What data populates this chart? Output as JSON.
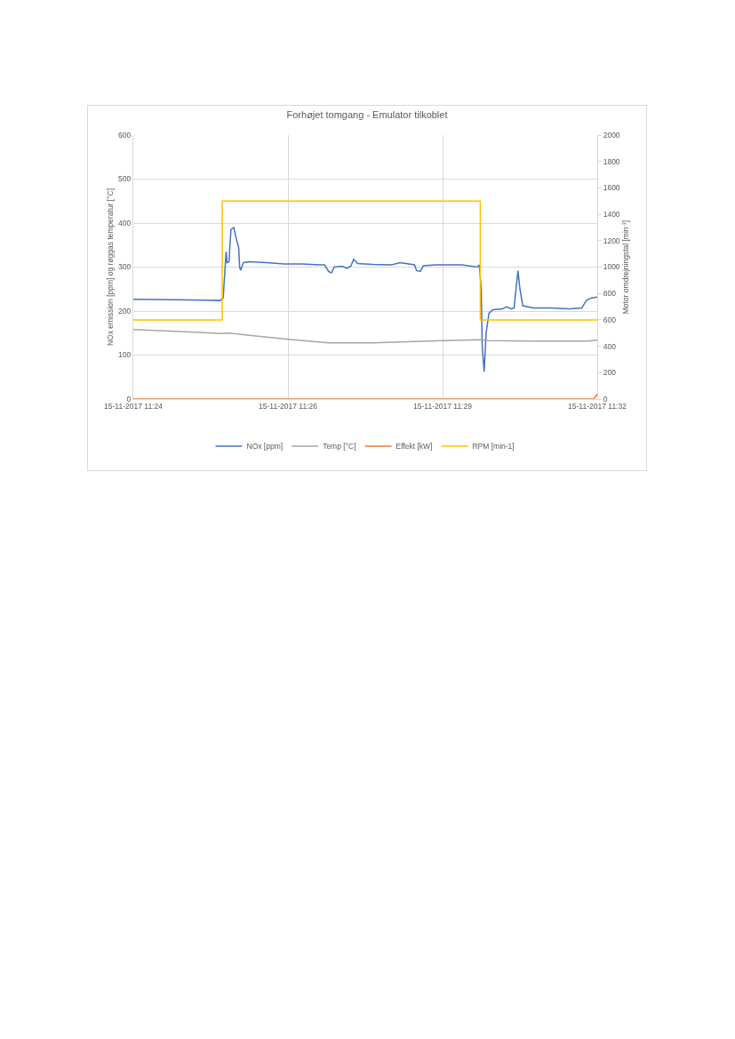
{
  "chart_data": {
    "type": "line",
    "title": "Forhøjet tomgang - Emulator tilkoblet",
    "ylabel": "NOx emission [ppm] og røggas temperatur [°C]",
    "y2label": "Motor omdrejningstal [min$^{-1}$]",
    "xlim": [
      "2017-11-15T11:24:00",
      "2017-11-15T11:32:00"
    ],
    "xticks": [
      {
        "value": "2017-11-15T11:24:00",
        "label": "15-11-2017 11:24"
      },
      {
        "value": "2017-11-15T11:26:40",
        "label": "15-11-2017 11:26"
      },
      {
        "value": "2017-11-15T11:29:20",
        "label": "15-11-2017 11:29"
      },
      {
        "value": "2017-11-15T11:32:00",
        "label": "15-11-2017 11:32"
      }
    ],
    "ylim": [
      0,
      600
    ],
    "yticks": [
      0,
      100,
      200,
      300,
      400,
      500,
      600
    ],
    "y2lim": [
      0,
      2000
    ],
    "y2ticks": [
      0,
      200,
      400,
      600,
      800,
      1000,
      1200,
      1400,
      1600,
      1800,
      2000
    ],
    "grid": true,
    "legend": "bottom",
    "marker": "none",
    "line_style": "solid",
    "series": [
      {
        "name": "NOx [ppm]",
        "color": "#4472c4",
        "x": [
          "2017-11-15T11:24:00",
          "2017-11-15T11:24:46",
          "2017-11-15T11:25:14",
          "2017-11-15T11:25:30",
          "2017-11-15T11:25:33",
          "2017-11-15T11:25:36",
          "2017-11-15T11:25:37",
          "2017-11-15T11:25:39",
          "2017-11-15T11:25:41",
          "2017-11-15T11:25:44",
          "2017-11-15T11:25:47",
          "2017-11-15T11:25:49",
          "2017-11-15T11:25:50",
          "2017-11-15T11:25:51",
          "2017-11-15T11:25:54",
          "2017-11-15T11:26:00",
          "2017-11-15T11:26:18",
          "2017-11-15T11:26:36",
          "2017-11-15T11:26:55",
          "2017-11-15T11:27:13",
          "2017-11-15T11:27:18",
          "2017-11-15T11:27:22",
          "2017-11-15T11:27:25",
          "2017-11-15T11:27:28",
          "2017-11-15T11:27:36",
          "2017-11-15T11:27:41",
          "2017-11-15T11:27:45",
          "2017-11-15T11:27:48",
          "2017-11-15T11:27:52",
          "2017-11-15T11:28:08",
          "2017-11-15T11:28:27",
          "2017-11-15T11:28:36",
          "2017-11-15T11:28:51",
          "2017-11-15T11:28:53",
          "2017-11-15T11:28:57",
          "2017-11-15T11:29:00",
          "2017-11-15T11:29:13",
          "2017-11-15T11:29:40",
          "2017-11-15T11:29:56",
          "2017-11-15T11:29:58",
          "2017-11-15T11:30:00",
          "2017-11-15T11:30:01",
          "2017-11-15T11:30:03",
          "2017-11-15T11:30:05",
          "2017-11-15T11:30:08",
          "2017-11-15T11:30:12",
          "2017-11-15T11:30:22",
          "2017-11-15T11:30:26",
          "2017-11-15T11:30:31",
          "2017-11-15T11:30:34",
          "2017-11-15T11:30:35",
          "2017-11-15T11:30:38",
          "2017-11-15T11:30:40",
          "2017-11-15T11:30:43",
          "2017-11-15T11:30:54",
          "2017-11-15T11:31:12",
          "2017-11-15T11:31:31",
          "2017-11-15T11:31:44",
          "2017-11-15T11:31:49",
          "2017-11-15T11:31:54",
          "2017-11-15T11:32:00"
        ],
        "values": [
          227,
          226,
          225,
          224,
          230,
          335,
          310,
          312,
          385,
          390,
          360,
          345,
          300,
          293,
          310,
          312,
          310,
          307,
          307,
          305,
          305,
          290,
          287,
          300,
          302,
          297,
          302,
          318,
          308,
          306,
          305,
          310,
          305,
          292,
          290,
          303,
          305,
          305,
          300,
          305,
          250,
          120,
          62,
          150,
          195,
          203,
          205,
          210,
          205,
          207,
          230,
          292,
          250,
          212,
          207,
          207,
          205,
          207,
          225,
          230,
          232
        ]
      },
      {
        "name": "Temp [°C]",
        "color": "#a5a5a5",
        "x": [
          "2017-11-15T11:24:00",
          "2017-11-15T11:25:14",
          "2017-11-15T11:25:30",
          "2017-11-15T11:25:39",
          "2017-11-15T11:26:00",
          "2017-11-15T11:26:40",
          "2017-11-15T11:27:22",
          "2017-11-15T11:28:08",
          "2017-11-15T11:29:20",
          "2017-11-15T11:29:59",
          "2017-11-15T11:30:08",
          "2017-11-15T11:30:54",
          "2017-11-15T11:31:49",
          "2017-11-15T11:32:00"
        ],
        "values": [
          158,
          151,
          149,
          150,
          145,
          136,
          128,
          128,
          133,
          135,
          133,
          132,
          132,
          134
        ]
      },
      {
        "name": "Effekt [kW]",
        "color": "#ed7d31",
        "x": [
          "2017-11-15T11:24:00",
          "2017-11-15T11:31:56",
          "2017-11-15T11:31:58",
          "2017-11-15T11:32:00"
        ],
        "values": [
          0,
          0,
          5,
          12
        ]
      },
      {
        "name": "RPM [min-1]",
        "color": "#ffc000",
        "type": "step",
        "axis": "y2",
        "x": [
          "2017-11-15T11:24:00",
          "2017-11-15T11:25:32",
          "2017-11-15T11:29:59",
          "2017-11-15T11:32:00"
        ],
        "values": [
          600,
          1500,
          600,
          600
        ]
      }
    ]
  }
}
